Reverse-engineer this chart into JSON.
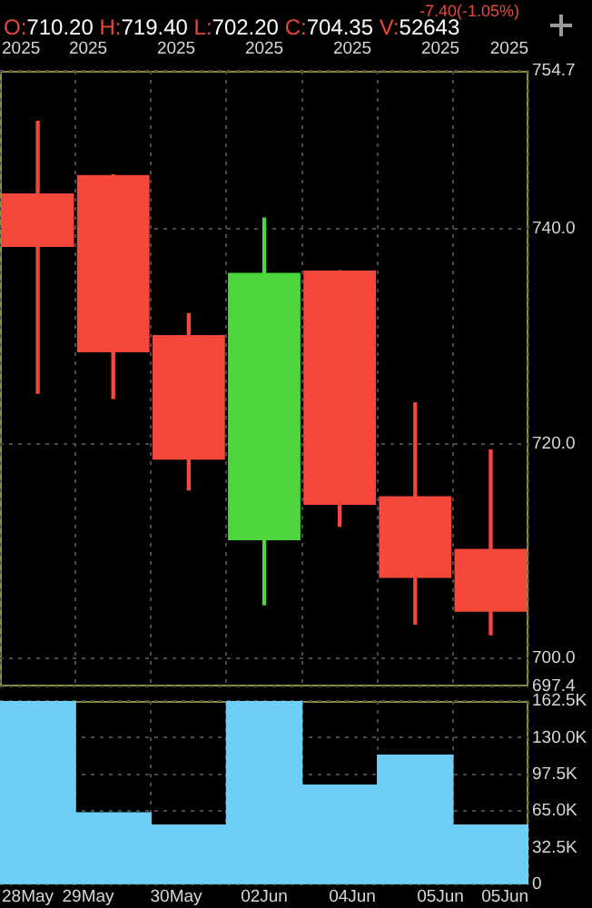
{
  "chart_data": [
    {
      "type": "candlestick",
      "title": "-7.40(-1.05%)",
      "subtitle": "O:710.20 H:719.40 L:702.20 C:704.35 V:52643",
      "categories": [
        null,
        null,
        null,
        null,
        null,
        null,
        null
      ],
      "ohlc": [
        [
          743.3,
          750.0,
          724.7,
          738.3
        ],
        [
          745.0,
          745.0,
          724.2,
          728.5
        ],
        [
          730.1,
          732.1,
          715.7,
          718.5
        ],
        [
          711.0,
          741.0,
          705.0,
          735.9
        ],
        [
          736.1,
          736.1,
          712.3,
          714.3
        ],
        [
          715.1,
          723.8,
          703.2,
          707.5
        ],
        [
          710.2,
          719.4,
          702.2,
          704.35
        ]
      ],
      "colors": [
        "#f5473a",
        "#f5473a",
        "#f5473a",
        "#4dd63d",
        "#f5473a",
        "#f5473a",
        "#f5473a"
      ],
      "ylim": [
        697.4,
        754.7
      ],
      "yticks": [
        754.7,
        {
          "value": 740,
          "label": "740.0"
        },
        {
          "value": 720,
          "label": "720.0"
        },
        {
          "value": 700,
          "label": "700.0"
        },
        697.4
      ],
      "annotations": [
        "2025",
        "2025",
        "2025",
        "2025",
        "2025",
        "2025",
        "2025"
      ],
      "grid": true,
      "legend": false
    },
    {
      "type": "bar",
      "categories": [
        null,
        null,
        null,
        null,
        null,
        null,
        null
      ],
      "values": [
        162500,
        63500,
        52500,
        162500,
        88000,
        114500,
        52500
      ],
      "color": "#6dcff6",
      "ylim": [
        0,
        162500
      ],
      "yticks": [
        0,
        {
          "value": 32500,
          "label": "32.5K"
        },
        {
          "value": 65000,
          "label": "65.0K"
        },
        {
          "value": 97500,
          "label": "97.5K"
        },
        {
          "value": 130000,
          "label": "130.0K"
        },
        {
          "value": 162500,
          "label": "162.5K"
        }
      ],
      "annotations": [
        "28May",
        "29May",
        "30May",
        "02Jun",
        "04Jun",
        "05Jun",
        "05Jun"
      ],
      "grid": true,
      "legend": false
    }
  ]
}
